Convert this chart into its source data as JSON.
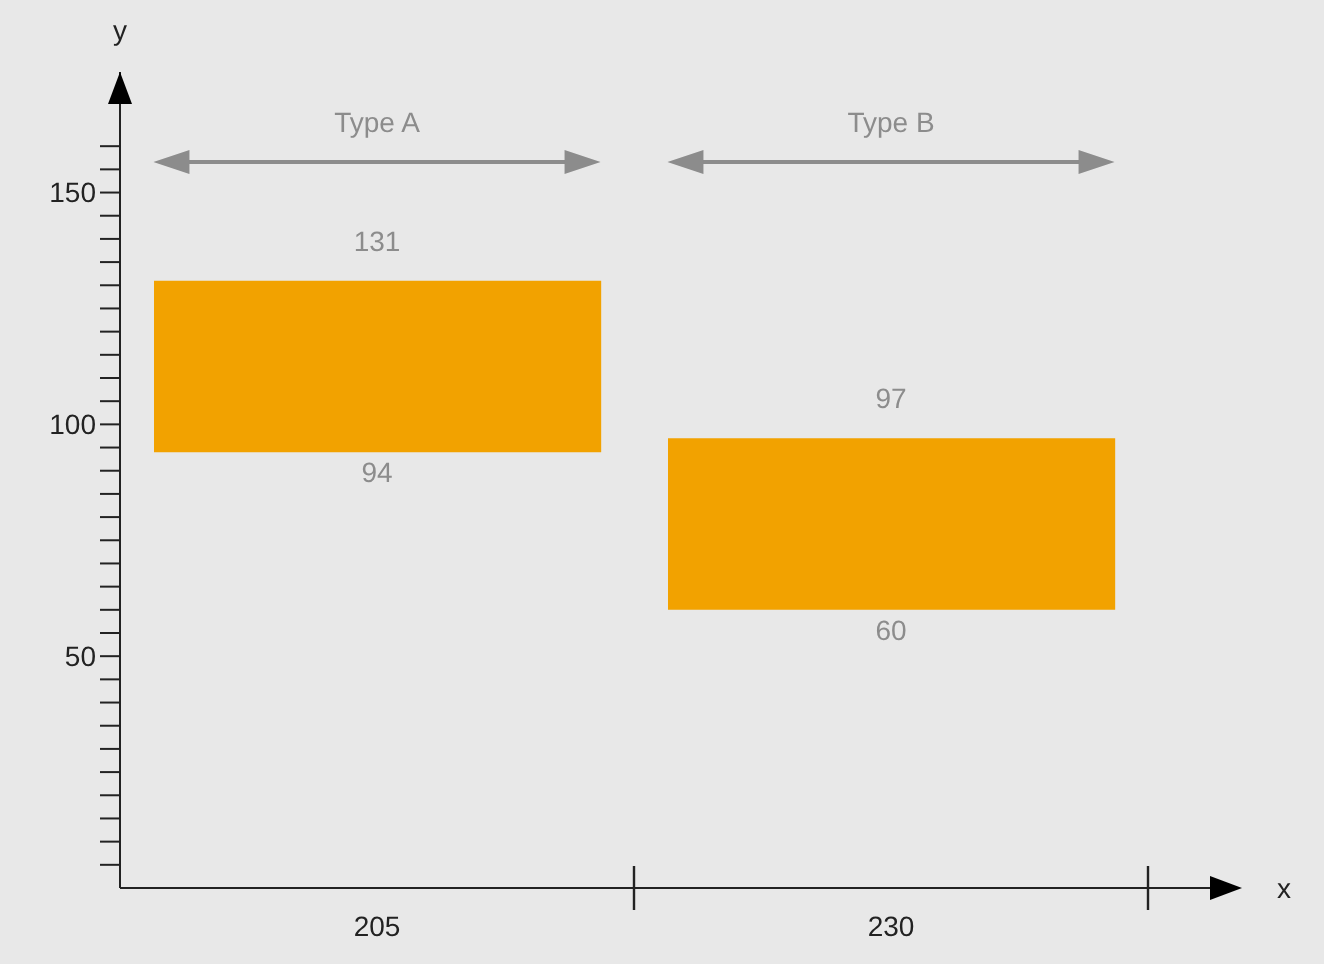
{
  "chart_data": {
    "type": "bar",
    "xlabel": "x",
    "ylabel": "y",
    "categories": [
      "205",
      "230"
    ],
    "base": [
      94,
      60
    ],
    "values": [
      37,
      37
    ],
    "color": "#f2a200",
    "ylim": [
      0,
      176
    ],
    "yticks": [
      {
        "value": 5,
        "label": null
      },
      {
        "value": 10,
        "label": null
      },
      {
        "value": 15,
        "label": null
      },
      {
        "value": 20,
        "label": null
      },
      {
        "value": 25,
        "label": null
      },
      {
        "value": 30,
        "label": null
      },
      {
        "value": 35,
        "label": null
      },
      {
        "value": 40,
        "label": null
      },
      {
        "value": 45,
        "label": null
      },
      50,
      {
        "value": 55,
        "label": null
      },
      {
        "value": 60,
        "label": null
      },
      {
        "value": 65,
        "label": null
      },
      {
        "value": 70,
        "label": null
      },
      {
        "value": 75,
        "label": null
      },
      {
        "value": 80,
        "label": null
      },
      {
        "value": 85,
        "label": null
      },
      {
        "value": 90,
        "label": null
      },
      {
        "value": 95,
        "label": null
      },
      100,
      {
        "value": 105,
        "label": null
      },
      {
        "value": 110,
        "label": null
      },
      {
        "value": 115,
        "label": null
      },
      {
        "value": 120,
        "label": null
      },
      {
        "value": 125,
        "label": null
      },
      {
        "value": 130,
        "label": null
      },
      {
        "value": 135,
        "label": null
      },
      {
        "value": 140,
        "label": null
      },
      {
        "value": 145,
        "label": null
      },
      150,
      {
        "value": 155,
        "label": null
      },
      {
        "value": 160,
        "label": null
      }
    ],
    "annotations": [
      "Type A",
      "Type B",
      {
        "text": "131",
        "x": "205",
        "y": 131
      },
      {
        "text": "94",
        "x": "205",
        "y": 94
      },
      {
        "text": "97",
        "x": "230",
        "y": 97
      },
      {
        "text": "60",
        "x": "230",
        "y": 60
      }
    ],
    "tick_labels": "xy"
  }
}
